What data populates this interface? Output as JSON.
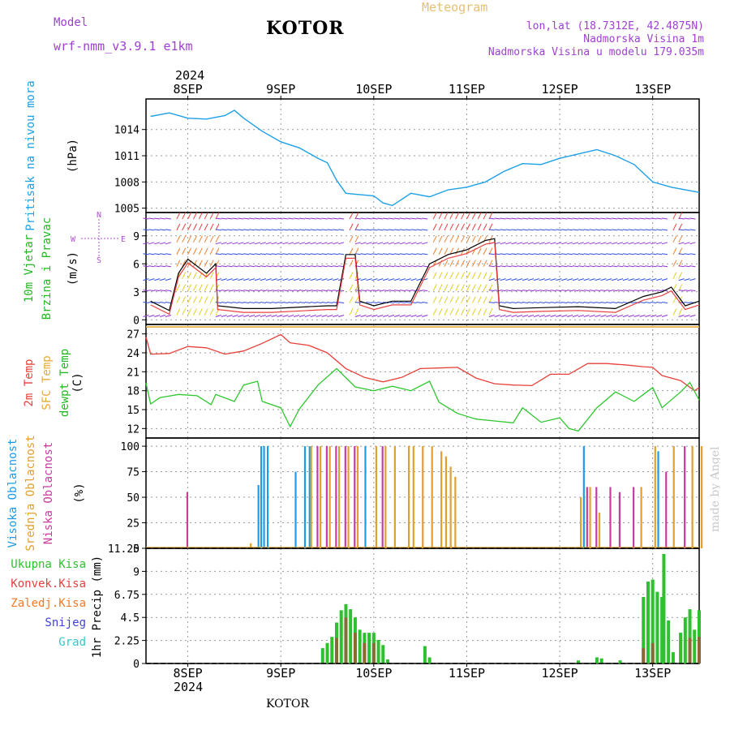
{
  "header": {
    "title": "KOTOR",
    "model_label": "Model",
    "model_name": "wrf-nmm_v3.9.1 e1km",
    "meteogram": "Meteogram",
    "lonlat": "lon,lat (18.7312E, 42.4875N)",
    "elevation": "Nadmorska Visina 1m",
    "model_elevation": "Nadmorska Visina u modelu 179.035m",
    "footer": "KOTOR",
    "credit": "made by Angel",
    "year_top": "2024",
    "year_bottom": "2024"
  },
  "colors": {
    "pressure": "#1ca0e6",
    "temp2m": "#e8403a",
    "sfc": "#e8a838",
    "dewpt": "#2ec82e",
    "high_cloud": "#1c9ce6",
    "mid_cloud": "#e0a030",
    "low_cloud": "#c83ca0",
    "total_precip": "#2ec02e",
    "conv_precip": "#e84040",
    "frozen_precip": "#f07a28",
    "snow": "#4040e0",
    "graupel": "#30c8c8",
    "wind_purple": "#9030d0",
    "wind_blue": "#3050e0"
  },
  "panels": {
    "pressure": {
      "label": "Pritisak na nivou mora",
      "unit": "(hPa)"
    },
    "wind": {
      "label1": "10m Vjetar",
      "label2": "Brzina i Pravac",
      "unit": "(m/s)",
      "compass": {
        "n": "N",
        "s": "S",
        "e": "E",
        "w": "W"
      }
    },
    "temp": {
      "label1": "2m Temp",
      "label2": "SFC Temp",
      "label3": "dewpt Temp",
      "unit": "(C)"
    },
    "cloud": {
      "label1": "Visoka Oblacnost",
      "label2": "Srednja Oblacnost",
      "label3": "Niska Oblacnost",
      "unit": "(%)"
    },
    "precip": {
      "legend": [
        "Ukupna Kisa",
        "Konvek.Kisa",
        "Zaledj.Kisa",
        "Snijeg",
        "Grad"
      ],
      "unit": "1hr Precip (mm)"
    }
  },
  "chart_data": [
    {
      "type": "line",
      "title": "Pritisak na nivou mora",
      "ylabel": "(hPa)",
      "x": [
        "8SEP",
        "9SEP",
        "10SEP",
        "11SEP",
        "12SEP",
        "13SEP"
      ],
      "ylim": [
        1004.5,
        1017.5
      ],
      "yticks": [
        1005,
        1008,
        1011,
        1014
      ],
      "grid": true,
      "series": [
        {
          "values_by_day": [
            [
              7.6,
              1015.5
            ],
            [
              7.8,
              1015.9
            ],
            [
              8.0,
              1015.3
            ],
            [
              8.2,
              1015.2
            ],
            [
              8.4,
              1015.6
            ],
            [
              8.5,
              1016.2
            ],
            [
              8.6,
              1015.3
            ],
            [
              8.8,
              1013.8
            ],
            [
              9.0,
              1012.6
            ],
            [
              9.2,
              1011.9
            ],
            [
              9.4,
              1010.7
            ],
            [
              9.5,
              1010.2
            ],
            [
              9.6,
              1008.2
            ],
            [
              9.7,
              1006.7
            ],
            [
              9.8,
              1006.6
            ],
            [
              10.0,
              1006.4
            ],
            [
              10.1,
              1005.6
            ],
            [
              10.2,
              1005.3
            ],
            [
              10.4,
              1006.7
            ],
            [
              10.6,
              1006.3
            ],
            [
              10.8,
              1007.1
            ],
            [
              11.0,
              1007.4
            ],
            [
              11.2,
              1008.0
            ],
            [
              11.4,
              1009.2
            ],
            [
              11.6,
              1010.1
            ],
            [
              11.8,
              1010.0
            ],
            [
              12.0,
              1010.7
            ],
            [
              12.2,
              1011.2
            ],
            [
              12.4,
              1011.7
            ],
            [
              12.6,
              1011.0
            ],
            [
              12.8,
              1010.0
            ],
            [
              13.0,
              1008.0
            ],
            [
              13.2,
              1007.4
            ],
            [
              13.4,
              1007.0
            ],
            [
              13.5,
              1006.8
            ]
          ]
        }
      ]
    },
    {
      "type": "line",
      "title": "10m Vjetar Brzina i Pravac",
      "ylabel": "(m/s)",
      "ylim": [
        -0.5,
        11.5
      ],
      "yticks": [
        0,
        3,
        6,
        9
      ],
      "grid": true,
      "series": [
        {
          "values_by_day": [
            [
              7.6,
              2
            ],
            [
              7.8,
              1
            ],
            [
              7.9,
              5
            ],
            [
              8.0,
              6.5
            ],
            [
              8.2,
              5
            ],
            [
              8.3,
              6
            ],
            [
              8.32,
              1.5
            ],
            [
              8.6,
              1.2
            ],
            [
              8.9,
              1.2
            ],
            [
              9.3,
              1.4
            ],
            [
              9.5,
              1.5
            ],
            [
              9.6,
              1.5
            ],
            [
              9.7,
              7
            ],
            [
              9.8,
              7
            ],
            [
              9.85,
              2
            ],
            [
              10.0,
              1.5
            ],
            [
              10.2,
              2
            ],
            [
              10.4,
              2
            ],
            [
              10.6,
              6
            ],
            [
              10.8,
              7
            ],
            [
              11.0,
              7.5
            ],
            [
              11.2,
              8.5
            ],
            [
              11.3,
              8.7
            ],
            [
              11.35,
              1.5
            ],
            [
              11.5,
              1.2
            ],
            [
              11.8,
              1.3
            ],
            [
              12.2,
              1.4
            ],
            [
              12.6,
              1.2
            ],
            [
              12.9,
              2.5
            ],
            [
              13.1,
              3
            ],
            [
              13.2,
              3.5
            ],
            [
              13.35,
              1.5
            ],
            [
              13.5,
              2
            ]
          ]
        }
      ]
    },
    {
      "type": "line",
      "title": "2m Temp / SFC Temp / dewpt Temp",
      "ylabel": "(C)",
      "ylim": [
        10.5,
        28.5
      ],
      "yticks": [
        12,
        15,
        18,
        21,
        24,
        27
      ],
      "grid": true,
      "series": [
        {
          "name": "2m Temp",
          "values_by_day": [
            [
              7.55,
              26.5
            ],
            [
              7.6,
              23.8
            ],
            [
              7.8,
              23.9
            ],
            [
              8.0,
              25.0
            ],
            [
              8.2,
              24.8
            ],
            [
              8.4,
              23.8
            ],
            [
              8.6,
              24.3
            ],
            [
              8.8,
              25.5
            ],
            [
              9.0,
              26.9
            ],
            [
              9.1,
              25.6
            ],
            [
              9.3,
              25.2
            ],
            [
              9.5,
              24.0
            ],
            [
              9.7,
              21.5
            ],
            [
              9.9,
              20.1
            ],
            [
              10.1,
              19.4
            ],
            [
              10.3,
              20.1
            ],
            [
              10.5,
              21.5
            ],
            [
              10.7,
              21.6
            ],
            [
              10.9,
              21.7
            ],
            [
              11.1,
              20.0
            ],
            [
              11.3,
              19.1
            ],
            [
              11.5,
              18.9
            ],
            [
              11.7,
              18.8
            ],
            [
              11.9,
              20.6
            ],
            [
              12.1,
              20.6
            ],
            [
              12.3,
              22.3
            ],
            [
              12.5,
              22.3
            ],
            [
              12.7,
              22.1
            ],
            [
              12.9,
              21.8
            ],
            [
              13.0,
              21.7
            ],
            [
              13.1,
              20.4
            ],
            [
              13.3,
              19.6
            ],
            [
              13.45,
              18.0
            ],
            [
              13.5,
              18.5
            ]
          ]
        },
        {
          "name": "SFC Temp",
          "values_by_day": [
            [
              7.55,
              28.1
            ],
            [
              13.5,
              28.1
            ]
          ]
        },
        {
          "name": "dewpt Temp",
          "values_by_day": [
            [
              7.55,
              19.2
            ],
            [
              7.6,
              15.9
            ],
            [
              7.7,
              16.9
            ],
            [
              7.9,
              17.4
            ],
            [
              8.1,
              17.2
            ],
            [
              8.25,
              15.8
            ],
            [
              8.3,
              17.4
            ],
            [
              8.5,
              16.3
            ],
            [
              8.6,
              18.9
            ],
            [
              8.75,
              19.5
            ],
            [
              8.8,
              16.3
            ],
            [
              9.0,
              15.3
            ],
            [
              9.1,
              12.3
            ],
            [
              9.2,
              15.1
            ],
            [
              9.4,
              18.9
            ],
            [
              9.6,
              21.5
            ],
            [
              9.8,
              18.6
            ],
            [
              10.0,
              18.0
            ],
            [
              10.2,
              18.7
            ],
            [
              10.4,
              18.0
            ],
            [
              10.6,
              19.5
            ],
            [
              10.7,
              16.2
            ],
            [
              10.9,
              14.4
            ],
            [
              11.1,
              13.5
            ],
            [
              11.3,
              13.2
            ],
            [
              11.5,
              12.9
            ],
            [
              11.6,
              15.3
            ],
            [
              11.8,
              13.0
            ],
            [
              12.0,
              13.7
            ],
            [
              12.1,
              12.0
            ],
            [
              12.2,
              11.6
            ],
            [
              12.4,
              15.3
            ],
            [
              12.6,
              17.8
            ],
            [
              12.8,
              16.3
            ],
            [
              13.0,
              18.5
            ],
            [
              13.1,
              15.3
            ],
            [
              13.3,
              17.8
            ],
            [
              13.4,
              19.3
            ],
            [
              13.5,
              16.5
            ]
          ]
        }
      ]
    },
    {
      "type": "bar",
      "title": "Visoka / Srednja / Niska Oblacnost",
      "ylabel": "(%)",
      "ylim": [
        0,
        100
      ],
      "yticks": [
        0,
        25,
        50,
        75,
        100
      ],
      "grid": true,
      "series": [
        {
          "name": "Visoka Oblacnost",
          "values_by_day": [
            [
              8.75,
              62
            ],
            [
              8.78,
              100
            ],
            [
              8.81,
              100
            ],
            [
              8.85,
              100
            ],
            [
              9.15,
              75
            ],
            [
              9.25,
              100
            ],
            [
              9.3,
              100
            ],
            [
              9.9,
              100
            ],
            [
              12.25,
              100
            ],
            [
              13.05,
              95
            ]
          ]
        },
        {
          "name": "Srednja Oblacnost",
          "values_by_day": [
            [
              8.65,
              5
            ],
            [
              9.3,
              100
            ],
            [
              9.4,
              100
            ],
            [
              9.5,
              100
            ],
            [
              9.6,
              100
            ],
            [
              9.7,
              100
            ],
            [
              9.8,
              100
            ],
            [
              10.0,
              100
            ],
            [
              10.1,
              100
            ],
            [
              10.2,
              100
            ],
            [
              10.35,
              100
            ],
            [
              10.4,
              100
            ],
            [
              10.5,
              100
            ],
            [
              10.6,
              100
            ],
            [
              10.7,
              95
            ],
            [
              10.75,
              90
            ],
            [
              10.8,
              80
            ],
            [
              10.85,
              70
            ],
            [
              12.2,
              50
            ],
            [
              12.3,
              60
            ],
            [
              12.4,
              35
            ],
            [
              12.85,
              60
            ],
            [
              13.0,
              100
            ],
            [
              13.2,
              100
            ],
            [
              13.4,
              100
            ],
            [
              13.5,
              100
            ]
          ]
        },
        {
          "name": "Niska Oblacnost",
          "values_by_day": [
            [
              7.95,
              55
            ],
            [
              9.35,
              100
            ],
            [
              9.45,
              100
            ],
            [
              9.55,
              100
            ],
            [
              9.65,
              100
            ],
            [
              9.75,
              100
            ],
            [
              10.05,
              100
            ],
            [
              12.25,
              60
            ],
            [
              12.35,
              60
            ],
            [
              12.5,
              60
            ],
            [
              12.6,
              55
            ],
            [
              12.75,
              60
            ],
            [
              13.1,
              75
            ],
            [
              13.3,
              100
            ]
          ]
        }
      ]
    },
    {
      "type": "bar",
      "title": "1hr Precip",
      "ylabel": "1hr Precip (mm)",
      "ylim": [
        0,
        11.25
      ],
      "yticks": [
        0,
        2.25,
        4.5,
        6.75,
        9,
        11.25
      ],
      "grid": true,
      "series": [
        {
          "name": "Ukupna Kisa",
          "values_by_day": [
            [
              9.45,
              1.5
            ],
            [
              9.5,
              2.0
            ],
            [
              9.55,
              2.6
            ],
            [
              9.6,
              4.0
            ],
            [
              9.65,
              5.2
            ],
            [
              9.7,
              5.8
            ],
            [
              9.75,
              5.3
            ],
            [
              9.8,
              4.5
            ],
            [
              9.85,
              3.3
            ],
            [
              9.9,
              3.0
            ],
            [
              9.95,
              3.0
            ],
            [
              10.0,
              3.0
            ],
            [
              10.05,
              2.3
            ],
            [
              10.1,
              1.8
            ],
            [
              10.15,
              0.4
            ],
            [
              10.55,
              1.7
            ],
            [
              10.6,
              0.6
            ],
            [
              12.2,
              0.3
            ],
            [
              12.4,
              0.6
            ],
            [
              12.45,
              0.5
            ],
            [
              12.65,
              0.3
            ],
            [
              12.9,
              6.5
            ],
            [
              12.95,
              8.0
            ],
            [
              13.0,
              8.2
            ],
            [
              13.05,
              7.0
            ],
            [
              13.1,
              6.5
            ],
            [
              13.12,
              10.7
            ],
            [
              13.17,
              4.2
            ],
            [
              13.22,
              1.1
            ],
            [
              13.3,
              3.0
            ],
            [
              13.35,
              4.5
            ],
            [
              13.4,
              5.3
            ],
            [
              13.45,
              3.3
            ],
            [
              13.5,
              5.2
            ]
          ]
        },
        {
          "name": "Konvek.Kisa",
          "values_by_day": [
            [
              9.6,
              2.5
            ],
            [
              9.7,
              4.5
            ],
            [
              9.8,
              3.0
            ],
            [
              9.9,
              2.0
            ],
            [
              10.0,
              2.0
            ],
            [
              12.9,
              1.5
            ],
            [
              13.0,
              2.0
            ],
            [
              13.4,
              2.5
            ],
            [
              13.5,
              2.6
            ]
          ]
        }
      ]
    }
  ]
}
